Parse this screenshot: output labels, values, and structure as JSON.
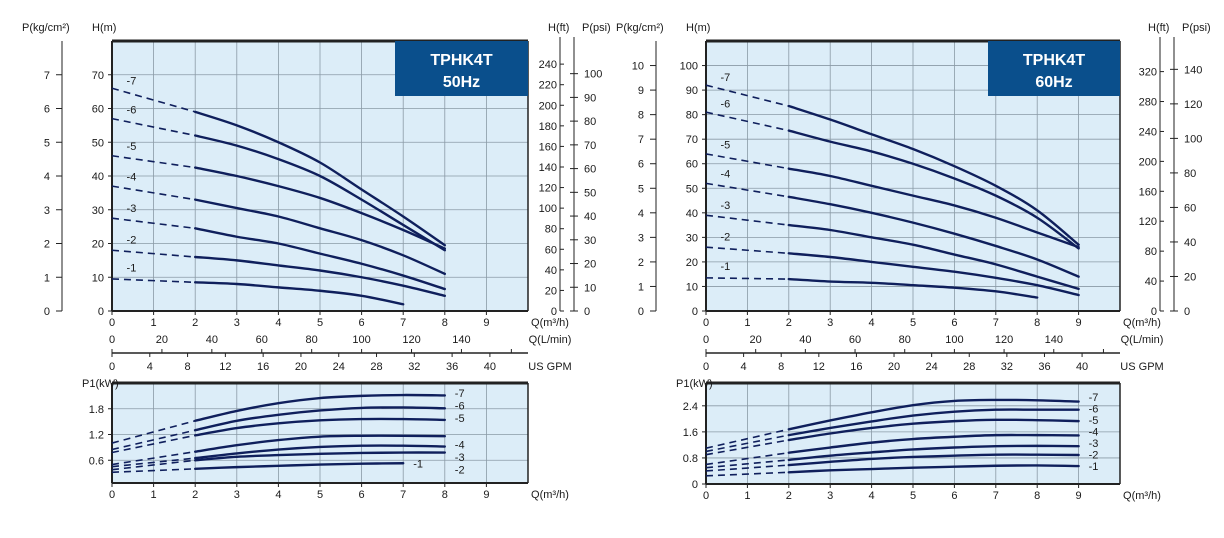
{
  "colors": {
    "plot_bg": "#dcedf8",
    "grid": "#8a9aa6",
    "curve": "#0f1f5c",
    "title_box": "#0a4f8c",
    "frame": "#222222"
  },
  "chart_data": [
    {
      "type": "line",
      "title": "TPHK4T",
      "subtitle": "50Hz",
      "xlabel": "Q(m³/h)",
      "ylabel": "H(m)",
      "xlim": [
        0,
        10
      ],
      "ylim": [
        0,
        80
      ],
      "grid": true,
      "x_ticks": [
        0,
        1,
        2,
        3,
        4,
        5,
        6,
        7,
        8,
        9
      ],
      "y_ticks": [
        0,
        10,
        20,
        30,
        40,
        50,
        60,
        70
      ],
      "secondary_axes": {
        "left_label": "P(kg/cm²)",
        "left_ticks": [
          0,
          1,
          2,
          3,
          4,
          5,
          6,
          7
        ],
        "right1_label": "H(ft)",
        "right1_ticks": [
          0,
          20,
          40,
          60,
          80,
          100,
          120,
          140,
          160,
          180,
          200,
          220,
          240
        ],
        "right2_label": "P(psi)",
        "right2_ticks": [
          0,
          10,
          20,
          30,
          40,
          50,
          60,
          70,
          80,
          90,
          100
        ],
        "x2_label": "Q(L/min)",
        "x2_ticks": [
          0,
          20,
          40,
          60,
          80,
          100,
          120,
          140
        ],
        "x3_label": "US GPM",
        "x3_ticks": [
          0,
          4,
          8,
          12,
          16,
          20,
          24,
          28,
          32,
          36,
          40
        ]
      },
      "dashed_until_x": 2,
      "series": [
        {
          "name": "-7",
          "x": [
            0,
            2,
            3,
            4,
            5,
            6,
            7,
            8
          ],
          "y": [
            66,
            59,
            55,
            50,
            44,
            36,
            28,
            19.5
          ]
        },
        {
          "name": "-6",
          "x": [
            0,
            2,
            3,
            4,
            5,
            6,
            7,
            8
          ],
          "y": [
            57,
            52,
            49,
            45,
            40,
            33,
            25.5,
            18
          ]
        },
        {
          "name": "-5",
          "x": [
            0,
            2,
            3,
            4,
            5,
            6,
            7,
            8
          ],
          "y": [
            46,
            42.5,
            40,
            37,
            33.5,
            29,
            24,
            18.5
          ]
        },
        {
          "name": "-4",
          "x": [
            0,
            2,
            3,
            4,
            5,
            6,
            7,
            8
          ],
          "y": [
            37,
            33,
            30.5,
            28,
            24.5,
            21,
            16.5,
            11
          ]
        },
        {
          "name": "-3",
          "x": [
            0,
            2,
            3,
            4,
            5,
            6,
            7,
            8
          ],
          "y": [
            27.5,
            24.5,
            22,
            20,
            17,
            14,
            10.5,
            6.5
          ]
        },
        {
          "name": "-2",
          "x": [
            0,
            2,
            3,
            4,
            5,
            6,
            7,
            8
          ],
          "y": [
            18,
            16,
            15,
            13.5,
            12,
            10,
            7.5,
            4.5
          ]
        },
        {
          "name": "-1",
          "x": [
            0,
            2,
            3,
            4,
            5,
            6,
            7
          ],
          "y": [
            9.5,
            8.5,
            8,
            7,
            6,
            4.5,
            2
          ]
        }
      ]
    },
    {
      "type": "line",
      "title": "TPHK4T",
      "subtitle": "60Hz",
      "xlabel": "Q(m³/h)",
      "ylabel": "H(m)",
      "xlim": [
        0,
        10
      ],
      "ylim": [
        0,
        110
      ],
      "grid": true,
      "x_ticks": [
        0,
        1,
        2,
        3,
        4,
        5,
        6,
        7,
        8,
        9
      ],
      "y_ticks": [
        0,
        10,
        20,
        30,
        40,
        50,
        60,
        70,
        80,
        90,
        100
      ],
      "secondary_axes": {
        "left_label": "P(kg/cm²)",
        "left_ticks": [
          0,
          1,
          2,
          3,
          4,
          5,
          6,
          7,
          8,
          9,
          10
        ],
        "right1_label": "H(ft)",
        "right1_ticks": [
          0,
          40,
          80,
          120,
          160,
          200,
          240,
          280,
          320
        ],
        "right2_label": "P(psi)",
        "right2_ticks": [
          0,
          20,
          40,
          60,
          80,
          100,
          120,
          140
        ],
        "x2_label": "Q(L/min)",
        "x2_ticks": [
          0,
          20,
          40,
          60,
          80,
          100,
          120,
          140
        ],
        "x3_label": "US GPM",
        "x3_ticks": [
          0,
          4,
          8,
          12,
          16,
          20,
          24,
          28,
          32,
          36,
          40
        ]
      },
      "dashed_until_x": 2,
      "series": [
        {
          "name": "-7",
          "x": [
            0,
            2,
            3,
            4,
            5,
            6,
            7,
            8,
            9
          ],
          "y": [
            92,
            83.5,
            78,
            72,
            66,
            59,
            51,
            41,
            27
          ]
        },
        {
          "name": "-6",
          "x": [
            0,
            2,
            3,
            4,
            5,
            6,
            7,
            8,
            9
          ],
          "y": [
            81,
            73.5,
            69,
            65,
            60,
            54,
            47,
            38,
            25.5
          ]
        },
        {
          "name": "-5",
          "x": [
            0,
            2,
            3,
            4,
            5,
            6,
            7,
            8,
            9
          ],
          "y": [
            64,
            58,
            55,
            51,
            47,
            43,
            38,
            32,
            26
          ]
        },
        {
          "name": "-4",
          "x": [
            0,
            2,
            3,
            4,
            5,
            6,
            7,
            8,
            9
          ],
          "y": [
            52,
            46.5,
            43.5,
            40,
            36,
            31.5,
            26.5,
            21,
            14
          ]
        },
        {
          "name": "-3",
          "x": [
            0,
            2,
            3,
            4,
            5,
            6,
            7,
            8,
            9
          ],
          "y": [
            39,
            35,
            33,
            30,
            27,
            23,
            19,
            14,
            9
          ]
        },
        {
          "name": "-2",
          "x": [
            0,
            2,
            3,
            4,
            5,
            6,
            7,
            8,
            9
          ],
          "y": [
            26,
            23.5,
            22,
            20,
            18,
            16,
            13.5,
            10.5,
            6.5
          ]
        },
        {
          "name": "-1",
          "x": [
            0,
            2,
            3,
            4,
            5,
            6,
            7,
            8
          ],
          "y": [
            13.5,
            13,
            12,
            11.5,
            10.5,
            9.5,
            8,
            5.5
          ]
        }
      ]
    },
    {
      "type": "line",
      "xlabel": "Q(m³/h)",
      "ylabel": "P1(kW)",
      "xlim": [
        0,
        10
      ],
      "ylim": [
        0,
        2.4
      ],
      "grid": true,
      "x_ticks": [
        0,
        1,
        2,
        3,
        4,
        5,
        6,
        7,
        8,
        9
      ],
      "y_ticks": [
        0.6,
        1.2,
        1.8
      ],
      "dashed_until_x": 2,
      "series": [
        {
          "name": "-7",
          "x": [
            0,
            2,
            3,
            4,
            5,
            6,
            7,
            8
          ],
          "y": [
            1.0,
            1.52,
            1.75,
            1.93,
            2.05,
            2.1,
            2.12,
            2.11
          ]
        },
        {
          "name": "-6",
          "x": [
            0,
            2,
            3,
            4,
            5,
            6,
            7,
            8
          ],
          "y": [
            0.85,
            1.3,
            1.52,
            1.66,
            1.76,
            1.82,
            1.83,
            1.81
          ]
        },
        {
          "name": "-5",
          "x": [
            0,
            2,
            3,
            4,
            5,
            6,
            7,
            8
          ],
          "y": [
            0.78,
            1.18,
            1.35,
            1.46,
            1.53,
            1.56,
            1.56,
            1.54
          ]
        },
        {
          "name": "-4",
          "x": [
            0,
            2,
            3,
            4,
            5,
            6,
            7,
            8
          ],
          "y": [
            0.5,
            0.8,
            0.95,
            1.07,
            1.15,
            1.17,
            1.17,
            1.16
          ]
        },
        {
          "name": "-3",
          "x": [
            0,
            2,
            3,
            4,
            5,
            6,
            7,
            8
          ],
          "y": [
            0.45,
            0.65,
            0.76,
            0.85,
            0.91,
            0.94,
            0.94,
            0.92
          ]
        },
        {
          "name": "-2",
          "x": [
            0,
            2,
            3,
            4,
            5,
            6,
            7,
            8
          ],
          "y": [
            0.38,
            0.6,
            0.68,
            0.72,
            0.75,
            0.77,
            0.78,
            0.78
          ]
        },
        {
          "name": "-1",
          "x": [
            0,
            2,
            3,
            4,
            5,
            6,
            7
          ],
          "y": [
            0.32,
            0.4,
            0.44,
            0.47,
            0.5,
            0.52,
            0.53
          ]
        }
      ]
    },
    {
      "type": "line",
      "xlabel": "Q(m³/h)",
      "ylabel": "P1(kW)",
      "xlim": [
        0,
        10
      ],
      "ylim": [
        0,
        3.1
      ],
      "grid": true,
      "x_ticks": [
        0,
        1,
        2,
        3,
        4,
        5,
        6,
        7,
        8,
        9
      ],
      "y_ticks": [
        0,
        0.8,
        1.6,
        2.4
      ],
      "dashed_until_x": 2,
      "series": [
        {
          "name": "-7",
          "x": [
            0,
            2,
            3,
            4,
            5,
            6,
            7,
            8,
            9
          ],
          "y": [
            1.1,
            1.68,
            1.95,
            2.2,
            2.42,
            2.55,
            2.58,
            2.57,
            2.53
          ]
        },
        {
          "name": "-6",
          "x": [
            0,
            2,
            3,
            4,
            5,
            6,
            7,
            8,
            9
          ],
          "y": [
            1.0,
            1.5,
            1.72,
            1.92,
            2.1,
            2.22,
            2.28,
            2.28,
            2.28
          ]
        },
        {
          "name": "-5",
          "x": [
            0,
            2,
            3,
            4,
            5,
            6,
            7,
            8,
            9
          ],
          "y": [
            0.9,
            1.35,
            1.55,
            1.72,
            1.85,
            1.93,
            1.97,
            1.96,
            1.93
          ]
        },
        {
          "name": "-4",
          "x": [
            0,
            2,
            3,
            4,
            5,
            6,
            7,
            8,
            9
          ],
          "y": [
            0.6,
            0.96,
            1.12,
            1.27,
            1.38,
            1.45,
            1.5,
            1.5,
            1.49
          ]
        },
        {
          "name": "-3",
          "x": [
            0,
            2,
            3,
            4,
            5,
            6,
            7,
            8,
            9
          ],
          "y": [
            0.5,
            0.74,
            0.87,
            0.97,
            1.06,
            1.12,
            1.16,
            1.17,
            1.16
          ]
        },
        {
          "name": "-2",
          "x": [
            0,
            2,
            3,
            4,
            5,
            6,
            7,
            8,
            9
          ],
          "y": [
            0.4,
            0.58,
            0.68,
            0.77,
            0.83,
            0.87,
            0.9,
            0.9,
            0.89
          ]
        },
        {
          "name": "-1",
          "x": [
            0,
            2,
            3,
            4,
            5,
            6,
            7,
            8,
            9
          ],
          "y": [
            0.25,
            0.36,
            0.42,
            0.46,
            0.5,
            0.53,
            0.56,
            0.57,
            0.55
          ]
        }
      ]
    }
  ]
}
